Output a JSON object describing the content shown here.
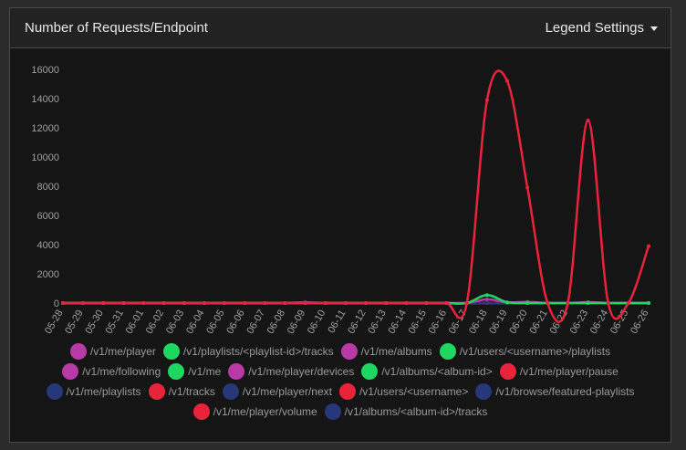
{
  "header": {
    "title": "Number of Requests/Endpoint",
    "legend_settings_label": "Legend Settings"
  },
  "chart_data": {
    "type": "line",
    "title": "Number of Requests/Endpoint",
    "x": [
      "05-28",
      "05-29",
      "05-30",
      "05-31",
      "06-01",
      "06-02",
      "06-03",
      "06-04",
      "06-05",
      "06-06",
      "06-07",
      "06-08",
      "06-09",
      "06-10",
      "06-11",
      "06-12",
      "06-13",
      "06-14",
      "06-15",
      "06-16",
      "06-17",
      "06-18",
      "06-19",
      "06-20",
      "06-21",
      "06-22",
      "06-23",
      "06-24",
      "06-25",
      "06-26"
    ],
    "ylim": [
      0,
      16000
    ],
    "yticks": [
      0,
      2000,
      4000,
      6000,
      8000,
      10000,
      12000,
      14000,
      16000
    ],
    "grid": false,
    "legend_position": "bottom",
    "series": [
      {
        "name": "/v1/me/player",
        "color": "#b83aa6",
        "values": [
          0,
          0,
          0,
          0,
          0,
          0,
          0,
          0,
          0,
          0,
          0,
          0,
          0,
          0,
          0,
          0,
          0,
          0,
          0,
          0,
          0,
          0,
          0,
          0,
          0,
          0,
          0,
          0,
          0,
          0
        ]
      },
      {
        "name": "/v1/playlists/<playlist-id>/tracks",
        "color": "#1ed760",
        "values": [
          0,
          0,
          0,
          0,
          0,
          0,
          0,
          0,
          0,
          0,
          0,
          0,
          0,
          0,
          0,
          0,
          0,
          0,
          0,
          0,
          0,
          0,
          0,
          0,
          0,
          0,
          0,
          0,
          0,
          0
        ]
      },
      {
        "name": "/v1/me/albums",
        "color": "#b83aa6",
        "values": [
          0,
          0,
          0,
          0,
          0,
          0,
          0,
          0,
          0,
          0,
          0,
          0,
          0,
          0,
          0,
          0,
          0,
          0,
          0,
          0,
          0,
          0,
          0,
          0,
          0,
          0,
          0,
          0,
          0,
          0
        ]
      },
      {
        "name": "/v1/users/<username>/playlists",
        "color": "#1ed760",
        "values": [
          0,
          0,
          0,
          0,
          0,
          0,
          0,
          0,
          0,
          0,
          0,
          0,
          0,
          0,
          0,
          0,
          0,
          0,
          0,
          0,
          0,
          0,
          0,
          0,
          0,
          0,
          0,
          0,
          0,
          0
        ]
      },
      {
        "name": "/v1/me/following",
        "color": "#b83aa6",
        "values": [
          0,
          0,
          0,
          0,
          0,
          0,
          0,
          0,
          0,
          0,
          0,
          0,
          0,
          0,
          0,
          0,
          0,
          0,
          0,
          0,
          0,
          0,
          0,
          0,
          0,
          0,
          0,
          0,
          0,
          0
        ]
      },
      {
        "name": "/v1/me",
        "color": "#1ed760",
        "values": [
          0,
          0,
          0,
          0,
          0,
          0,
          0,
          0,
          0,
          0,
          0,
          0,
          0,
          0,
          0,
          0,
          0,
          0,
          0,
          0,
          0,
          550,
          50,
          0,
          0,
          0,
          0,
          0,
          0,
          0
        ]
      },
      {
        "name": "/v1/me/player/devices",
        "color": "#b83aa6",
        "values": [
          0,
          0,
          0,
          0,
          0,
          0,
          0,
          0,
          0,
          0,
          0,
          0,
          50,
          0,
          0,
          0,
          0,
          0,
          0,
          0,
          0,
          250,
          50,
          80,
          0,
          0,
          60,
          0,
          0,
          0
        ]
      },
      {
        "name": "/v1/albums/<album-id>",
        "color": "#1ed760",
        "values": [
          0,
          0,
          0,
          0,
          0,
          0,
          0,
          0,
          0,
          0,
          0,
          0,
          0,
          0,
          0,
          0,
          0,
          0,
          0,
          0,
          0,
          0,
          0,
          0,
          0,
          0,
          0,
          0,
          0,
          0
        ]
      },
      {
        "name": "/v1/me/player/pause",
        "color": "#e8233a",
        "values": [
          0,
          0,
          0,
          0,
          0,
          0,
          0,
          0,
          0,
          0,
          0,
          0,
          0,
          0,
          0,
          0,
          0,
          0,
          0,
          0,
          0,
          13900,
          15200,
          7900,
          0,
          0,
          12500,
          0,
          0,
          3900
        ]
      },
      {
        "name": "/v1/me/playlists",
        "color": "#26377a",
        "values": [
          0,
          0,
          0,
          0,
          0,
          0,
          0,
          0,
          0,
          0,
          0,
          0,
          0,
          0,
          0,
          0,
          0,
          0,
          0,
          0,
          0,
          0,
          0,
          0,
          0,
          0,
          0,
          0,
          0,
          0
        ]
      },
      {
        "name": "/v1/tracks",
        "color": "#e8233a",
        "values": [
          0,
          0,
          0,
          0,
          0,
          0,
          0,
          0,
          0,
          0,
          0,
          0,
          0,
          0,
          0,
          0,
          0,
          0,
          0,
          0,
          0,
          0,
          0,
          0,
          0,
          0,
          0,
          0,
          0,
          0
        ]
      },
      {
        "name": "/v1/me/player/next",
        "color": "#26377a",
        "values": [
          0,
          0,
          0,
          0,
          0,
          0,
          0,
          0,
          0,
          0,
          0,
          0,
          0,
          0,
          0,
          0,
          0,
          0,
          0,
          0,
          0,
          0,
          0,
          0,
          0,
          0,
          0,
          0,
          0,
          0
        ]
      },
      {
        "name": "/v1/users/<username>",
        "color": "#e8233a",
        "values": [
          0,
          0,
          0,
          0,
          0,
          0,
          0,
          0,
          0,
          0,
          0,
          0,
          0,
          0,
          0,
          0,
          0,
          0,
          0,
          0,
          0,
          0,
          0,
          0,
          0,
          0,
          0,
          0,
          0,
          0
        ]
      },
      {
        "name": "/v1/browse/featured-playlists",
        "color": "#26377a",
        "values": [
          0,
          0,
          0,
          0,
          0,
          0,
          0,
          0,
          0,
          0,
          0,
          0,
          0,
          0,
          0,
          0,
          0,
          0,
          0,
          0,
          0,
          0,
          0,
          0,
          0,
          0,
          0,
          0,
          0,
          0
        ]
      },
      {
        "name": "/v1/me/player/volume",
        "color": "#e8233a",
        "values": [
          0,
          0,
          0,
          0,
          0,
          0,
          0,
          0,
          0,
          0,
          0,
          0,
          0,
          0,
          0,
          0,
          0,
          0,
          0,
          0,
          0,
          0,
          0,
          0,
          0,
          0,
          0,
          0,
          0,
          0
        ]
      },
      {
        "name": "/v1/albums/<album-id>/tracks",
        "color": "#26377a",
        "values": [
          0,
          0,
          0,
          0,
          0,
          0,
          0,
          0,
          0,
          0,
          0,
          0,
          0,
          0,
          0,
          0,
          0,
          0,
          0,
          0,
          0,
          0,
          0,
          0,
          0,
          0,
          0,
          0,
          0,
          0
        ]
      }
    ],
    "legend_rows": [
      [
        0,
        1,
        2,
        3
      ],
      [
        4,
        5,
        6,
        7,
        8
      ],
      [
        9,
        10,
        11,
        12,
        13
      ],
      [
        14,
        15
      ]
    ]
  }
}
